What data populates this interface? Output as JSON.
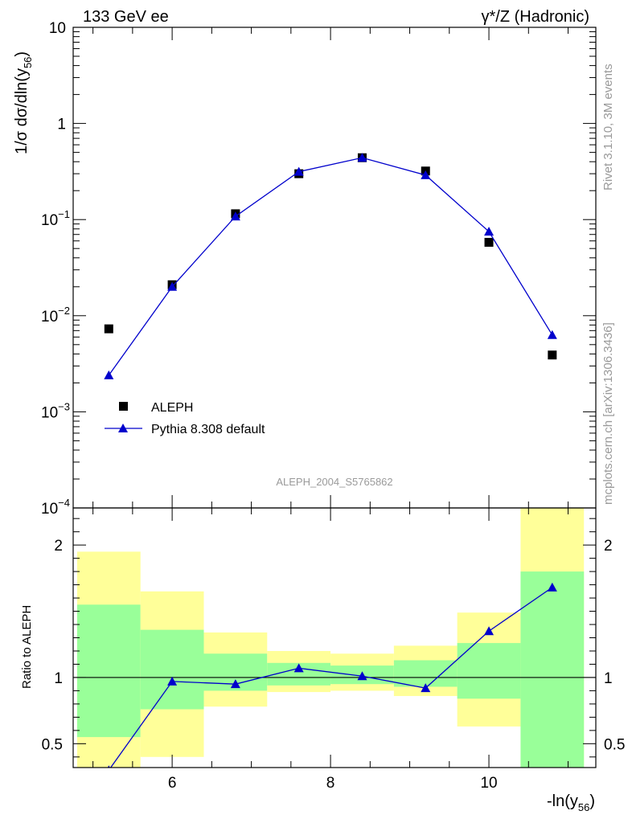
{
  "header": {
    "left": "133 GeV ee",
    "right": "γ*/Z (Hadronic)"
  },
  "side_labels": {
    "rivet": "Rivet 3.1.10,  3M events",
    "mcplots": "mcplots.cern.ch [arXiv:1306.3436]"
  },
  "watermark": "ALEPH_2004_S5765862",
  "chart_data": [
    {
      "type": "scatter",
      "panel": "main",
      "ylabel": "1/σ  dσ/dln(y56)",
      "xlabel": "-ln(y56)",
      "yscale": "log",
      "xlim": [
        4.75,
        11.35
      ],
      "ylim": [
        0.0001,
        10
      ],
      "ytick_labels": [
        "10^-4",
        "10^-3",
        "10^-2",
        "10^-1",
        "1",
        "10"
      ],
      "legend_position": "lower-left",
      "series": [
        {
          "name": "ALEPH",
          "marker": "square",
          "color": "#000000",
          "x": [
            5.2,
            6.0,
            6.8,
            7.6,
            8.4,
            9.2,
            10.0,
            10.8
          ],
          "y": [
            0.0073,
            0.021,
            0.115,
            0.3,
            0.44,
            0.32,
            0.058,
            0.0039
          ]
        },
        {
          "name": "Pythia 8.308 default",
          "marker": "triangle",
          "color": "#0000cc",
          "x": [
            5.2,
            6.0,
            6.8,
            7.6,
            8.4,
            9.2,
            10.0,
            10.8
          ],
          "y": [
            0.0024,
            0.02,
            0.108,
            0.315,
            0.44,
            0.29,
            0.075,
            0.0063
          ]
        }
      ]
    },
    {
      "type": "line",
      "panel": "ratio",
      "ylabel": "Ratio to ALEPH",
      "xlabel": "-ln(y56)",
      "xlim": [
        4.75,
        11.35
      ],
      "ylim": [
        0.32,
        2.28
      ],
      "xticks": [
        6,
        8,
        10
      ],
      "yticks": [
        0.5,
        1,
        2
      ],
      "reference_line": 1,
      "bands": [
        {
          "x0": 4.8,
          "x1": 5.6,
          "yellow": [
            0.32,
            1.95
          ],
          "green": [
            0.55,
            1.55
          ]
        },
        {
          "x0": 5.6,
          "x1": 6.4,
          "yellow": [
            0.4,
            1.65
          ],
          "green": [
            0.76,
            1.36
          ]
        },
        {
          "x0": 6.4,
          "x1": 7.2,
          "yellow": [
            0.78,
            1.34
          ],
          "green": [
            0.9,
            1.18
          ]
        },
        {
          "x0": 7.2,
          "x1": 8.0,
          "yellow": [
            0.89,
            1.2
          ],
          "green": [
            0.94,
            1.11
          ]
        },
        {
          "x0": 8.0,
          "x1": 8.8,
          "yellow": [
            0.9,
            1.18
          ],
          "green": [
            0.95,
            1.09
          ]
        },
        {
          "x0": 8.8,
          "x1": 9.6,
          "yellow": [
            0.86,
            1.24
          ],
          "green": [
            0.93,
            1.13
          ]
        },
        {
          "x0": 9.6,
          "x1": 10.4,
          "yellow": [
            0.63,
            1.49
          ],
          "green": [
            0.84,
            1.26
          ]
        },
        {
          "x0": 10.4,
          "x1": 11.2,
          "yellow": [
            0.32,
            2.28
          ],
          "green": [
            0.32,
            1.8
          ]
        }
      ],
      "series": [
        {
          "name": "Pythia 8.308 default",
          "color": "#0000cc",
          "x": [
            5.2,
            6.0,
            6.8,
            7.6,
            8.4,
            9.2,
            10.0,
            10.8
          ],
          "y": [
            0.3,
            0.97,
            0.95,
            1.07,
            1.01,
            0.92,
            1.35,
            1.68
          ]
        }
      ]
    }
  ]
}
